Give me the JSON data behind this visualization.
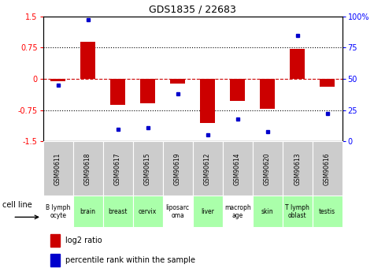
{
  "title": "GDS1835 / 22683",
  "samples": [
    "GSM90611",
    "GSM90618",
    "GSM90617",
    "GSM90615",
    "GSM90619",
    "GSM90612",
    "GSM90614",
    "GSM90620",
    "GSM90613",
    "GSM90616"
  ],
  "cell_lines": [
    "B lymph\nocyte",
    "brain",
    "breast",
    "cervix",
    "liposarc\noma",
    "liver",
    "macroph\nage",
    "skin",
    "T lymph\noblast",
    "testis"
  ],
  "log2_ratio": [
    -0.05,
    0.88,
    -0.62,
    -0.58,
    -0.12,
    -1.05,
    -0.52,
    -0.72,
    0.72,
    -0.18
  ],
  "percentile_rank": [
    45,
    97,
    10,
    11,
    38,
    5,
    18,
    8,
    85,
    22
  ],
  "ylim_left": [
    -1.5,
    1.5
  ],
  "ylim_right": [
    0,
    100
  ],
  "yticks_left": [
    -1.5,
    -0.75,
    0,
    0.75,
    1.5
  ],
  "ytick_labels_left": [
    "-1.5",
    "-0.75",
    "0",
    "0.75",
    "1.5"
  ],
  "yticks_right": [
    0,
    25,
    50,
    75,
    100
  ],
  "ytick_labels_right": [
    "0",
    "25",
    "50",
    "75",
    "100%"
  ],
  "bar_color": "#cc0000",
  "dot_color": "#0000cc",
  "zero_line_color": "#cc0000",
  "hline_color": "#000000",
  "cell_line_colors_bg": [
    "#ffffff",
    "#aaffaa",
    "#aaffaa",
    "#aaffaa",
    "#ffffff",
    "#aaffaa",
    "#ffffff",
    "#aaffaa",
    "#aaffaa",
    "#aaffaa"
  ],
  "sample_bg_color": "#cccccc",
  "legend_bar_color": "#cc0000",
  "legend_dot_color": "#0000cc",
  "fig_width": 4.75,
  "fig_height": 3.45,
  "dpi": 100
}
